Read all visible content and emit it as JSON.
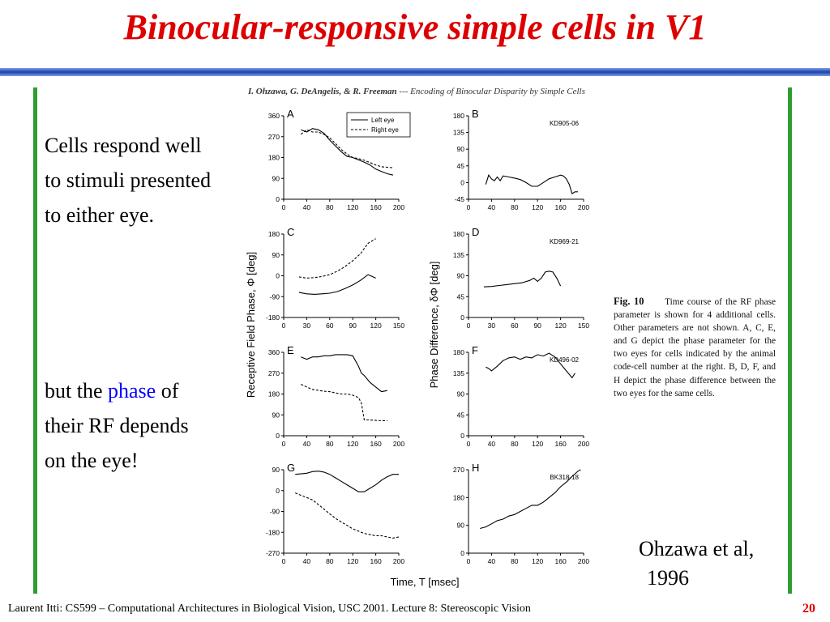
{
  "slide": {
    "title": "Binocular-responsive simple cells in V1",
    "text_top": [
      "Cells respond well",
      "to stimuli presented",
      "to either eye."
    ],
    "text_bottom_prefix": "but the ",
    "text_bottom_highlight": "phase",
    "text_bottom_suffix": " of",
    "text_bottom_lines": [
      "their RF depends",
      "on the eye!"
    ],
    "reference_line1": "Ohzawa et al,",
    "reference_line2": "1996",
    "footer": "Laurent Itti: CS599 – Computational Architectures in Biological Vision, USC 2001. Lecture 8: Stereoscopic Vision",
    "page_number": "20",
    "colors": {
      "title": "#dd0000",
      "highlight": "#0000ff",
      "side_bars": "#2f9e2f",
      "top_bar": "#1a40b0"
    }
  },
  "figure": {
    "citation_authors": "I. Ohzawa, G. DeAngelis, & R. Freeman",
    "citation_rest": " --- Encoding of Binocular Disparity by Simple Cells",
    "caption_head": "Fig. 10",
    "caption_body": "Time course of the RF phase parameter is shown for 4 additional cells. Other parameters are not shown. A, C, E, and G depict the phase parameter for the two eyes for cells indicated by the animal code-cell number at the right. B, D, F, and H depict the phase difference between the two eyes for the same cells.",
    "ylabel_left": "Receptive Field Phase, Φ [deg]",
    "ylabel_right": "Phase Difference, δΦ [deg]",
    "xlabel": "Time, T [msec]",
    "legend": [
      "Left eye",
      "Right eye"
    ]
  },
  "chart_data": [
    {
      "type": "line",
      "panel": "A",
      "xticks": [
        0,
        40,
        80,
        120,
        160,
        200
      ],
      "yticks": [
        0,
        90,
        180,
        270,
        360
      ],
      "xlim": [
        0,
        200
      ],
      "ylim": [
        0,
        360
      ],
      "series": [
        {
          "name": "Left eye",
          "x": [
            30,
            40,
            50,
            60,
            70,
            80,
            90,
            100,
            110,
            120,
            130,
            140,
            150,
            160,
            170,
            180,
            190
          ],
          "values": [
            300,
            290,
            305,
            300,
            285,
            255,
            230,
            205,
            185,
            180,
            170,
            160,
            148,
            130,
            120,
            110,
            104
          ]
        },
        {
          "name": "Right eye",
          "x": [
            30,
            40,
            50,
            60,
            70,
            80,
            90,
            100,
            110,
            120,
            130,
            140,
            150,
            160,
            170,
            180,
            190
          ],
          "values": [
            280,
            300,
            290,
            290,
            280,
            265,
            240,
            215,
            195,
            180,
            175,
            168,
            158,
            148,
            140,
            138,
            136
          ]
        }
      ]
    },
    {
      "type": "line",
      "panel": "B",
      "code": "KD905-06",
      "xticks": [
        0,
        40,
        80,
        120,
        160,
        200
      ],
      "yticks": [
        -45,
        0,
        45,
        90,
        135,
        180
      ],
      "xlim": [
        0,
        200
      ],
      "ylim": [
        -45,
        180
      ],
      "series": [
        {
          "x": [
            30,
            35,
            40,
            45,
            50,
            55,
            60,
            70,
            80,
            90,
            100,
            110,
            120,
            130,
            140,
            150,
            160,
            165,
            170,
            175,
            180,
            185,
            190
          ],
          "values": [
            -5,
            20,
            10,
            5,
            15,
            5,
            18,
            15,
            12,
            8,
            0,
            -10,
            -10,
            0,
            10,
            15,
            20,
            18,
            10,
            -5,
            -30,
            -25,
            -25
          ]
        }
      ]
    },
    {
      "type": "line",
      "panel": "C",
      "xticks": [
        0,
        30,
        60,
        90,
        120,
        150
      ],
      "yticks": [
        -180,
        -90,
        0,
        90,
        180
      ],
      "xlim": [
        0,
        150
      ],
      "ylim": [
        -180,
        180
      ],
      "series": [
        {
          "x": [
            20,
            30,
            40,
            50,
            60,
            70,
            80,
            90,
            100,
            110,
            120
          ],
          "values": [
            -72,
            -78,
            -80,
            -78,
            -75,
            -68,
            -55,
            -40,
            -20,
            5,
            -10
          ]
        },
        {
          "x": [
            20,
            30,
            40,
            50,
            60,
            70,
            80,
            90,
            100,
            110,
            120
          ],
          "values": [
            -5,
            -10,
            -8,
            -3,
            5,
            20,
            40,
            65,
            95,
            140,
            160
          ]
        }
      ]
    },
    {
      "type": "line",
      "panel": "D",
      "code": "KD969-21",
      "xticks": [
        0,
        30,
        60,
        90,
        120,
        150
      ],
      "yticks": [
        0,
        45,
        90,
        135,
        180
      ],
      "xlim": [
        0,
        150
      ],
      "ylim": [
        0,
        180
      ],
      "series": [
        {
          "x": [
            20,
            30,
            40,
            50,
            60,
            70,
            80,
            85,
            90,
            95,
            100,
            105,
            110,
            115,
            120
          ],
          "values": [
            66,
            67,
            69,
            71,
            73,
            75,
            80,
            85,
            78,
            85,
            98,
            100,
            98,
            85,
            68
          ]
        }
      ]
    },
    {
      "type": "line",
      "panel": "E",
      "xticks": [
        0,
        40,
        80,
        120,
        160,
        200
      ],
      "yticks": [
        0,
        90,
        180,
        270,
        360
      ],
      "xlim": [
        0,
        200
      ],
      "ylim": [
        0,
        360
      ],
      "series": [
        {
          "x": [
            30,
            40,
            50,
            60,
            70,
            80,
            90,
            100,
            110,
            120,
            130,
            135,
            140,
            150,
            160,
            170,
            180
          ],
          "values": [
            340,
            330,
            340,
            340,
            345,
            345,
            350,
            350,
            350,
            345,
            300,
            270,
            260,
            230,
            210,
            190,
            195
          ]
        },
        {
          "x": [
            30,
            40,
            50,
            60,
            70,
            80,
            90,
            100,
            110,
            120,
            130,
            135,
            140,
            150,
            160,
            170,
            180
          ],
          "values": [
            222,
            210,
            200,
            196,
            192,
            190,
            185,
            180,
            180,
            175,
            165,
            140,
            68,
            68,
            66,
            65,
            65
          ]
        }
      ]
    },
    {
      "type": "line",
      "panel": "F",
      "code": "KD496-02",
      "xticks": [
        0,
        40,
        80,
        120,
        160,
        200
      ],
      "yticks": [
        0,
        45,
        90,
        135,
        180
      ],
      "xlim": [
        0,
        200
      ],
      "ylim": [
        0,
        180
      ],
      "series": [
        {
          "x": [
            30,
            35,
            40,
            50,
            60,
            70,
            80,
            90,
            100,
            110,
            120,
            130,
            140,
            150,
            160,
            170,
            180,
            185
          ],
          "values": [
            148,
            145,
            140,
            150,
            162,
            168,
            170,
            165,
            170,
            168,
            175,
            172,
            178,
            170,
            155,
            140,
            125,
            135
          ]
        }
      ]
    },
    {
      "type": "line",
      "panel": "G",
      "xticks": [
        0,
        40,
        80,
        120,
        160,
        200
      ],
      "yticks": [
        -270,
        -180,
        -90,
        0,
        90
      ],
      "xlim": [
        0,
        200
      ],
      "ylim": [
        -270,
        90
      ],
      "series": [
        {
          "x": [
            20,
            30,
            40,
            50,
            60,
            70,
            80,
            90,
            100,
            110,
            120,
            130,
            140,
            150,
            160,
            170,
            180,
            190,
            200
          ],
          "values": [
            70,
            72,
            75,
            82,
            84,
            80,
            70,
            55,
            40,
            25,
            10,
            -5,
            -5,
            10,
            25,
            45,
            60,
            70,
            70
          ]
        },
        {
          "x": [
            20,
            30,
            40,
            50,
            60,
            70,
            80,
            90,
            100,
            110,
            120,
            130,
            140,
            150,
            160,
            170,
            180,
            190,
            200
          ],
          "values": [
            -10,
            -20,
            -30,
            -40,
            -60,
            -80,
            -100,
            -120,
            -135,
            -150,
            -165,
            -175,
            -185,
            -190,
            -195,
            -195,
            -200,
            -205,
            -200
          ]
        }
      ]
    },
    {
      "type": "line",
      "panel": "H",
      "code": "BK318-18",
      "xticks": [
        0,
        40,
        80,
        120,
        160,
        200
      ],
      "yticks": [
        0,
        90,
        180,
        270
      ],
      "xlim": [
        0,
        200
      ],
      "ylim": [
        0,
        270
      ],
      "series": [
        {
          "x": [
            20,
            30,
            40,
            50,
            60,
            70,
            80,
            90,
            100,
            110,
            120,
            130,
            140,
            150,
            160,
            170,
            180,
            190,
            195
          ],
          "values": [
            80,
            85,
            95,
            105,
            110,
            120,
            125,
            135,
            145,
            155,
            155,
            165,
            180,
            195,
            215,
            230,
            248,
            265,
            270
          ]
        }
      ]
    }
  ]
}
